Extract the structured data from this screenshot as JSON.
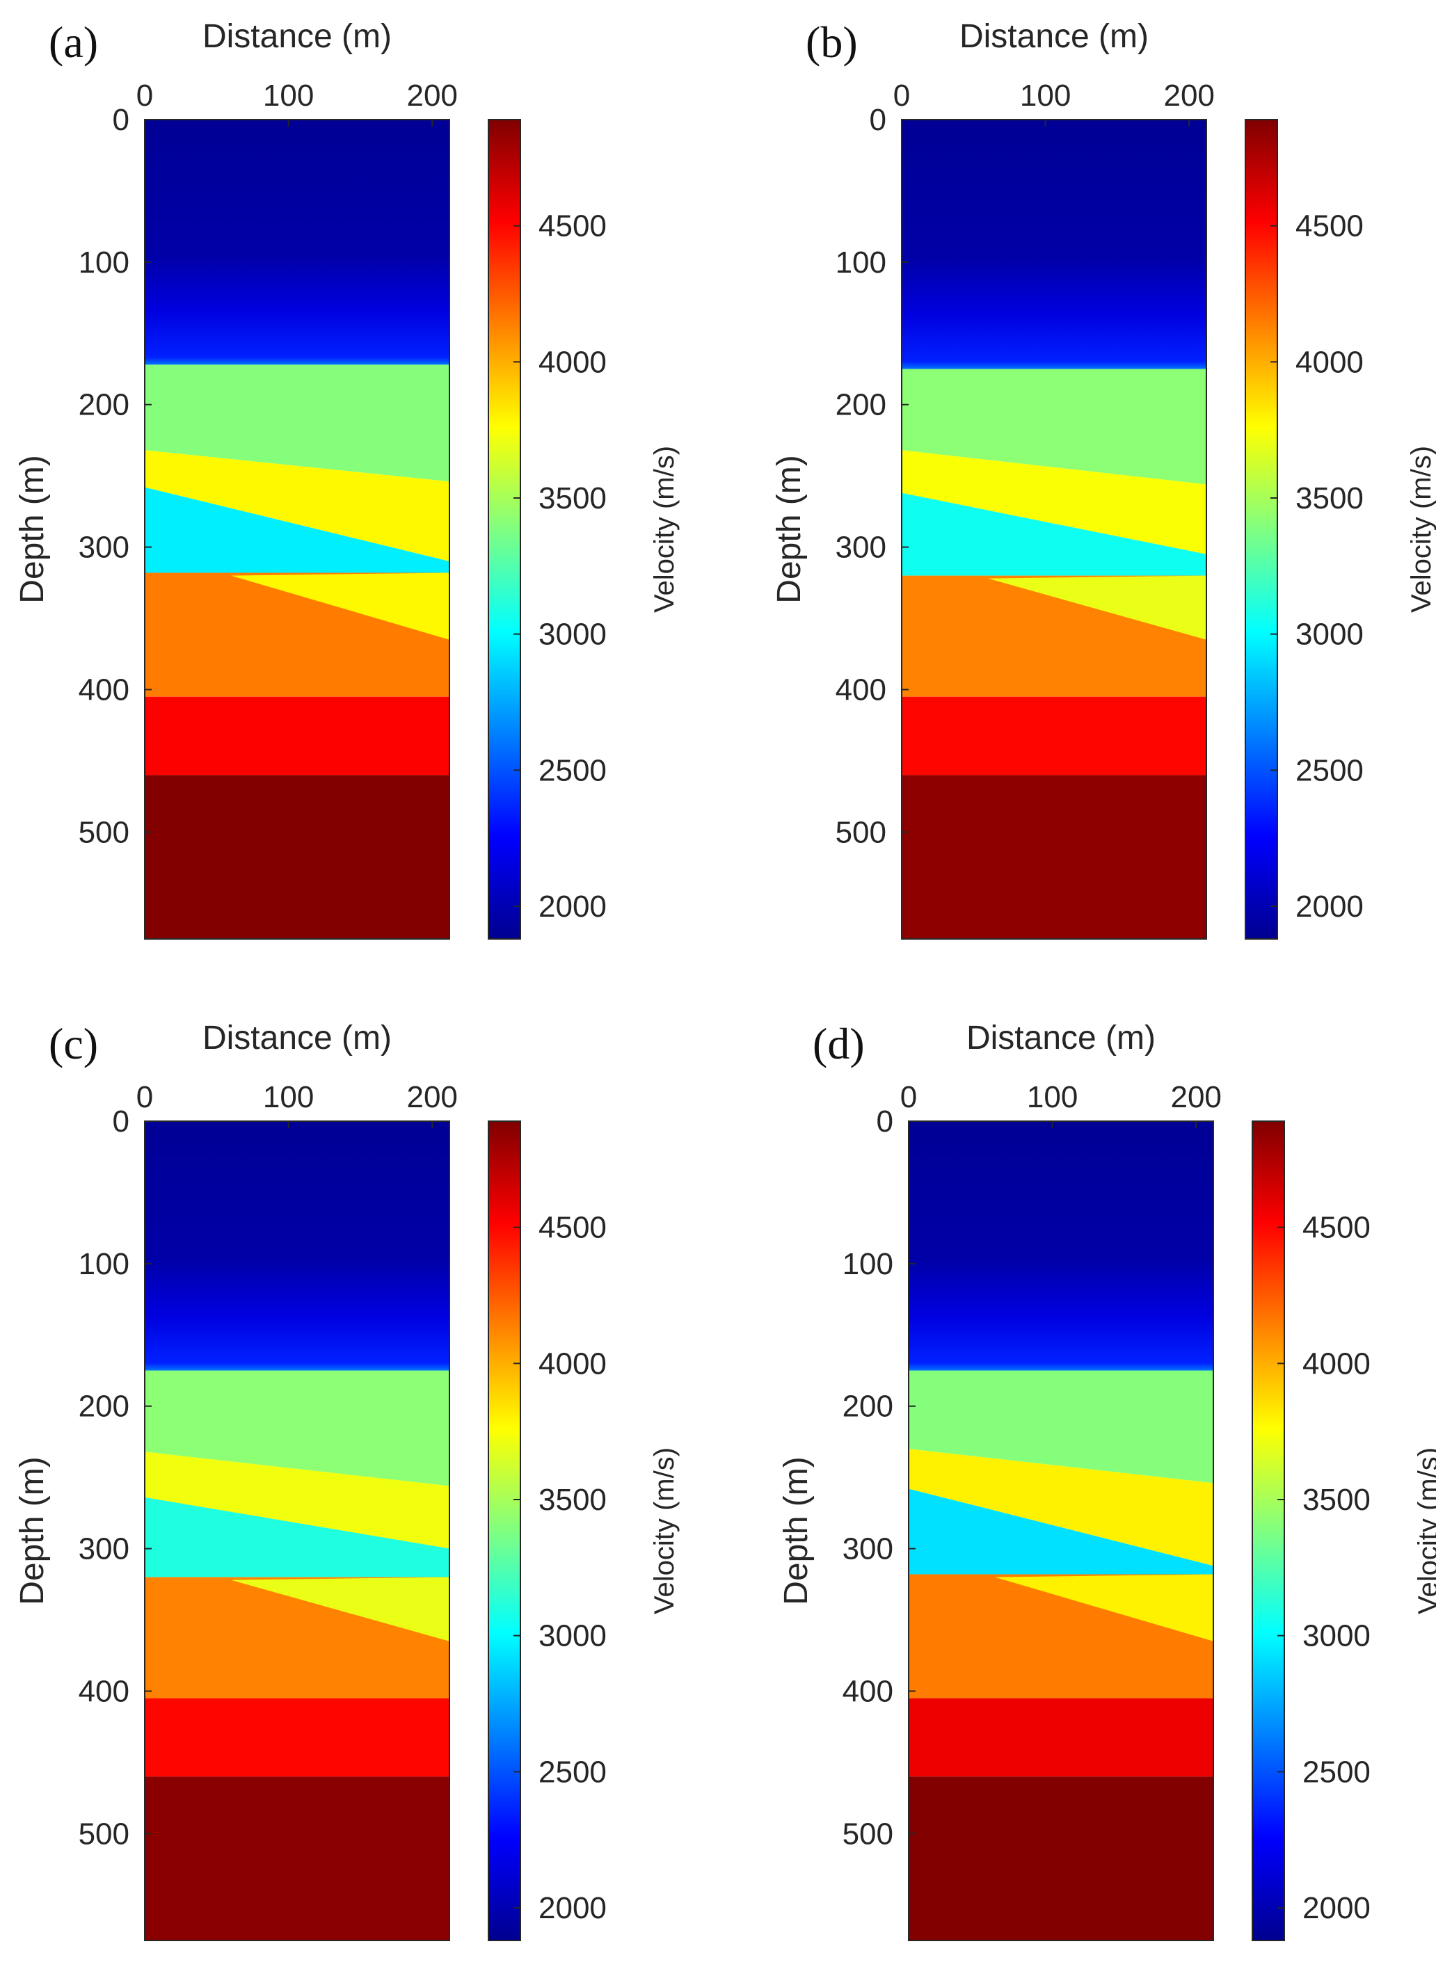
{
  "colors": {
    "jet": [
      "#00008f",
      "#0000ff",
      "#0080ff",
      "#00ffff",
      "#80ff80",
      "#ffff00",
      "#ff8000",
      "#ff0000",
      "#800000"
    ]
  },
  "chart_data": [
    {
      "type": "heatmap",
      "panel_label": "(a)",
      "xlabel": "Distance (m)",
      "ylabel": "Depth (m)",
      "colorbar_label": "Velocity (m/s)",
      "xlim": [
        0,
        212
      ],
      "ylim": [
        0,
        575
      ],
      "xticks": [
        0,
        100,
        200
      ],
      "yticks": [
        0,
        100,
        200,
        300,
        400,
        500
      ],
      "clim": [
        1880,
        4890
      ],
      "colorbar_ticks": [
        2000,
        2500,
        3000,
        3500,
        4000,
        4500
      ],
      "layers": [
        {
          "name": "top",
          "top_left": 0,
          "top_right": 0,
          "velocity": 1920
        },
        {
          "name": "upper",
          "top_left": 100,
          "top_right": 100,
          "velocity": 2150
        },
        {
          "name": "interface",
          "top_left": 160,
          "top_right": 160,
          "velocity": 2500
        },
        {
          "name": "green",
          "top_left": 172,
          "top_right": 172,
          "velocity": 3400
        },
        {
          "name": "yellow-wedge",
          "top_left": 232,
          "top_right": 254,
          "velocity": 3780
        },
        {
          "name": "blue-lens",
          "top_left": 258,
          "top_right": 310,
          "velocity": 2960
        },
        {
          "name": "orange",
          "top_left": 318,
          "top_right": 318,
          "velocity": 4150
        },
        {
          "name": "red",
          "top_left": 405,
          "top_right": 405,
          "velocity": 4520
        },
        {
          "name": "dark-red",
          "top_left": 460,
          "top_right": 460,
          "velocity": 4880
        }
      ],
      "wedge_yellow": {
        "left_top": 320,
        "right_top": 318,
        "right_bottom": 365,
        "velocity": 3780
      }
    },
    {
      "type": "heatmap",
      "panel_label": "(b)",
      "xlabel": "Distance (m)",
      "ylabel": "Depth (m)",
      "colorbar_label": "Velocity (m/s)",
      "xlim": [
        0,
        212
      ],
      "ylim": [
        0,
        575
      ],
      "xticks": [
        0,
        100,
        200
      ],
      "yticks": [
        0,
        100,
        200,
        300,
        400,
        500
      ],
      "clim": [
        1880,
        4890
      ],
      "colorbar_ticks": [
        2000,
        2500,
        3000,
        3500,
        4000,
        4500
      ],
      "layers": [
        {
          "name": "top",
          "top_left": 0,
          "top_right": 0,
          "velocity": 1920
        },
        {
          "name": "upper",
          "top_left": 100,
          "top_right": 100,
          "velocity": 2150
        },
        {
          "name": "interface",
          "top_left": 160,
          "top_right": 160,
          "velocity": 2500
        },
        {
          "name": "green",
          "top_left": 175,
          "top_right": 175,
          "velocity": 3420
        },
        {
          "name": "yellow-wedge",
          "top_left": 232,
          "top_right": 256,
          "velocity": 3750
        },
        {
          "name": "blue-lens",
          "top_left": 262,
          "top_right": 305,
          "velocity": 3050
        },
        {
          "name": "orange",
          "top_left": 320,
          "top_right": 320,
          "velocity": 4130
        },
        {
          "name": "red",
          "top_left": 405,
          "top_right": 405,
          "velocity": 4500
        },
        {
          "name": "dark-red",
          "top_left": 460,
          "top_right": 460,
          "velocity": 4850
        }
      ],
      "wedge_yellow": {
        "left_top": 322,
        "right_top": 320,
        "right_bottom": 365,
        "velocity": 3700
      }
    },
    {
      "type": "heatmap",
      "panel_label": "(c)",
      "xlabel": "Distance (m)",
      "ylabel": "Depth (m)",
      "colorbar_label": "Velocity (m/s)",
      "xlim": [
        0,
        212
      ],
      "ylim": [
        0,
        575
      ],
      "xticks": [
        0,
        100,
        200
      ],
      "yticks": [
        0,
        100,
        200,
        300,
        400,
        500
      ],
      "clim": [
        1880,
        4890
      ],
      "colorbar_ticks": [
        2000,
        2500,
        3000,
        3500,
        4000,
        4500
      ],
      "layers": [
        {
          "name": "top",
          "top_left": 0,
          "top_right": 0,
          "velocity": 1920
        },
        {
          "name": "upper",
          "top_left": 100,
          "top_right": 100,
          "velocity": 2150
        },
        {
          "name": "interface",
          "top_left": 160,
          "top_right": 160,
          "velocity": 2500
        },
        {
          "name": "green",
          "top_left": 175,
          "top_right": 175,
          "velocity": 3420
        },
        {
          "name": "yellow-wedge",
          "top_left": 232,
          "top_right": 256,
          "velocity": 3720
        },
        {
          "name": "blue-lens",
          "top_left": 264,
          "top_right": 300,
          "velocity": 3100
        },
        {
          "name": "orange",
          "top_left": 320,
          "top_right": 320,
          "velocity": 4130
        },
        {
          "name": "red",
          "top_left": 405,
          "top_right": 405,
          "velocity": 4500
        },
        {
          "name": "dark-red",
          "top_left": 460,
          "top_right": 460,
          "velocity": 4860
        }
      ],
      "wedge_yellow": {
        "left_top": 322,
        "right_top": 320,
        "right_bottom": 365,
        "velocity": 3700
      }
    },
    {
      "type": "heatmap",
      "panel_label": "(d)",
      "xlabel": "Distance (m)",
      "ylabel": "Depth (m)",
      "colorbar_label": "Velocity (m/s)",
      "xlim": [
        0,
        212
      ],
      "ylim": [
        0,
        575
      ],
      "xticks": [
        0,
        100,
        200
      ],
      "yticks": [
        0,
        100,
        200,
        300,
        400,
        500
      ],
      "clim": [
        1880,
        4890
      ],
      "colorbar_ticks": [
        2000,
        2500,
        3000,
        3500,
        4000,
        4500
      ],
      "layers": [
        {
          "name": "top",
          "top_left": 0,
          "top_right": 0,
          "velocity": 1920
        },
        {
          "name": "upper",
          "top_left": 100,
          "top_right": 100,
          "velocity": 2150
        },
        {
          "name": "interface",
          "top_left": 160,
          "top_right": 160,
          "velocity": 2500
        },
        {
          "name": "green",
          "top_left": 175,
          "top_right": 175,
          "velocity": 3400
        },
        {
          "name": "yellow-wedge",
          "top_left": 230,
          "top_right": 254,
          "velocity": 3800
        },
        {
          "name": "blue-lens",
          "top_left": 258,
          "top_right": 312,
          "velocity": 2920
        },
        {
          "name": "orange",
          "top_left": 318,
          "top_right": 318,
          "velocity": 4150
        },
        {
          "name": "red",
          "top_left": 405,
          "top_right": 405,
          "velocity": 4560
        },
        {
          "name": "dark-red",
          "top_left": 460,
          "top_right": 460,
          "velocity": 4880
        }
      ],
      "wedge_yellow": {
        "left_top": 320,
        "right_top": 318,
        "right_bottom": 365,
        "velocity": 3800
      }
    }
  ]
}
